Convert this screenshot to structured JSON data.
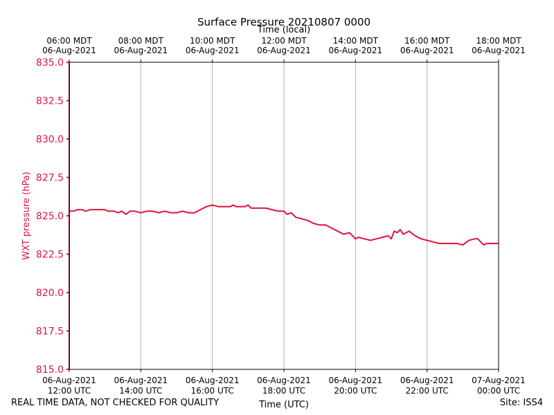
{
  "chart_data": {
    "type": "line",
    "title": "Surface Pressure 20210807 0000",
    "top_axis_label": "Time (local)",
    "xlabel": "Time (UTC)",
    "ylabel": "WXT pressure (hPa)",
    "ylim": [
      815.0,
      835.0
    ],
    "y_ticks": [
      "815.0",
      "817.5",
      "820.0",
      "822.5",
      "825.0",
      "827.5",
      "830.0",
      "832.5",
      "835.0"
    ],
    "x_ticks_utc": [
      [
        "06-Aug-2021",
        "12:00 UTC"
      ],
      [
        "06-Aug-2021",
        "14:00 UTC"
      ],
      [
        "06-Aug-2021",
        "16:00 UTC"
      ],
      [
        "06-Aug-2021",
        "18:00 UTC"
      ],
      [
        "06-Aug-2021",
        "20:00 UTC"
      ],
      [
        "06-Aug-2021",
        "22:00 UTC"
      ],
      [
        "07-Aug-2021",
        "00:00 UTC"
      ]
    ],
    "x_ticks_local": [
      [
        "06:00 MDT",
        "06-Aug-2021"
      ],
      [
        "08:00 MDT",
        "06-Aug-2021"
      ],
      [
        "10:00 MDT",
        "06-Aug-2021"
      ],
      [
        "12:00 MDT",
        "06-Aug-2021"
      ],
      [
        "14:00 MDT",
        "06-Aug-2021"
      ],
      [
        "16:00 MDT",
        "06-Aug-2021"
      ],
      [
        "18:00 MDT",
        "06-Aug-2021"
      ]
    ],
    "xlim_utc": [
      "2021-08-06 12:00",
      "2021-08-07 00:00"
    ],
    "grid": "vertical",
    "series": [
      {
        "color": "#dc143c",
        "points": [
          [
            "2021-08-06 12:00",
            835.0
          ],
          [
            "2021-08-06 12:00",
            815.0
          ],
          [
            "2021-08-06 12:00",
            825.3
          ],
          [
            "2021-08-06 12:07",
            825.3
          ],
          [
            "2021-08-06 12:14",
            825.4
          ],
          [
            "2021-08-06 12:21",
            825.4
          ],
          [
            "2021-08-06 12:28",
            825.3
          ],
          [
            "2021-08-06 12:35",
            825.4
          ],
          [
            "2021-08-06 12:45",
            825.4
          ],
          [
            "2021-08-06 12:55",
            825.4
          ],
          [
            "2021-08-06 13:00",
            825.4
          ],
          [
            "2021-08-06 13:05",
            825.3
          ],
          [
            "2021-08-06 13:15",
            825.3
          ],
          [
            "2021-08-06 13:22",
            825.2
          ],
          [
            "2021-08-06 13:28",
            825.3
          ],
          [
            "2021-08-06 13:35",
            825.1
          ],
          [
            "2021-08-06 13:42",
            825.3
          ],
          [
            "2021-08-06 13:50",
            825.3
          ],
          [
            "2021-08-06 14:00",
            825.2
          ],
          [
            "2021-08-06 14:10",
            825.3
          ],
          [
            "2021-08-06 14:20",
            825.3
          ],
          [
            "2021-08-06 14:30",
            825.2
          ],
          [
            "2021-08-06 14:40",
            825.3
          ],
          [
            "2021-08-06 14:50",
            825.2
          ],
          [
            "2021-08-06 15:00",
            825.2
          ],
          [
            "2021-08-06 15:10",
            825.3
          ],
          [
            "2021-08-06 15:20",
            825.2
          ],
          [
            "2021-08-06 15:30",
            825.2
          ],
          [
            "2021-08-06 15:40",
            825.4
          ],
          [
            "2021-08-06 15:50",
            825.6
          ],
          [
            "2021-08-06 16:00",
            825.7
          ],
          [
            "2021-08-06 16:10",
            825.6
          ],
          [
            "2021-08-06 16:20",
            825.6
          ],
          [
            "2021-08-06 16:30",
            825.6
          ],
          [
            "2021-08-06 16:35",
            825.7
          ],
          [
            "2021-08-06 16:40",
            825.6
          ],
          [
            "2021-08-06 16:55",
            825.6
          ],
          [
            "2021-08-06 17:00",
            825.7
          ],
          [
            "2021-08-06 17:05",
            825.5
          ],
          [
            "2021-08-06 17:15",
            825.5
          ],
          [
            "2021-08-06 17:30",
            825.5
          ],
          [
            "2021-08-06 17:40",
            825.4
          ],
          [
            "2021-08-06 17:50",
            825.3
          ],
          [
            "2021-08-06 18:00",
            825.3
          ],
          [
            "2021-08-06 18:05",
            825.1
          ],
          [
            "2021-08-06 18:12",
            825.2
          ],
          [
            "2021-08-06 18:20",
            824.9
          ],
          [
            "2021-08-06 18:30",
            824.8
          ],
          [
            "2021-08-06 18:40",
            824.7
          ],
          [
            "2021-08-06 18:50",
            824.5
          ],
          [
            "2021-08-06 19:00",
            824.4
          ],
          [
            "2021-08-06 19:10",
            824.4
          ],
          [
            "2021-08-06 19:20",
            824.2
          ],
          [
            "2021-08-06 19:30",
            824.0
          ],
          [
            "2021-08-06 19:40",
            823.8
          ],
          [
            "2021-08-06 19:50",
            823.9
          ],
          [
            "2021-08-06 20:00",
            823.5
          ],
          [
            "2021-08-06 20:05",
            823.6
          ],
          [
            "2021-08-06 20:15",
            823.5
          ],
          [
            "2021-08-06 20:25",
            823.4
          ],
          [
            "2021-08-06 20:35",
            823.5
          ],
          [
            "2021-08-06 20:45",
            823.6
          ],
          [
            "2021-08-06 20:55",
            823.7
          ],
          [
            "2021-08-06 21:00",
            823.5
          ],
          [
            "2021-08-06 21:05",
            824.0
          ],
          [
            "2021-08-06 21:10",
            823.9
          ],
          [
            "2021-08-06 21:15",
            824.1
          ],
          [
            "2021-08-06 21:20",
            823.8
          ],
          [
            "2021-08-06 21:30",
            824.0
          ],
          [
            "2021-08-06 21:40",
            823.7
          ],
          [
            "2021-08-06 21:50",
            823.5
          ],
          [
            "2021-08-06 22:00",
            823.4
          ],
          [
            "2021-08-06 22:10",
            823.3
          ],
          [
            "2021-08-06 22:20",
            823.2
          ],
          [
            "2021-08-06 22:30",
            823.2
          ],
          [
            "2021-08-06 22:40",
            823.2
          ],
          [
            "2021-08-06 22:50",
            823.2
          ],
          [
            "2021-08-06 23:00",
            823.1
          ],
          [
            "2021-08-06 23:10",
            823.4
          ],
          [
            "2021-08-06 23:20",
            823.5
          ],
          [
            "2021-08-06 23:25",
            823.5
          ],
          [
            "2021-08-06 23:30",
            823.3
          ],
          [
            "2021-08-06 23:35",
            823.1
          ],
          [
            "2021-08-06 23:40",
            823.2
          ],
          [
            "2021-08-07 00:00",
            823.2
          ]
        ]
      }
    ]
  },
  "footer": {
    "disclaimer": "REAL TIME DATA, NOT CHECKED FOR QUALITY",
    "site": "Site: ISS4"
  }
}
